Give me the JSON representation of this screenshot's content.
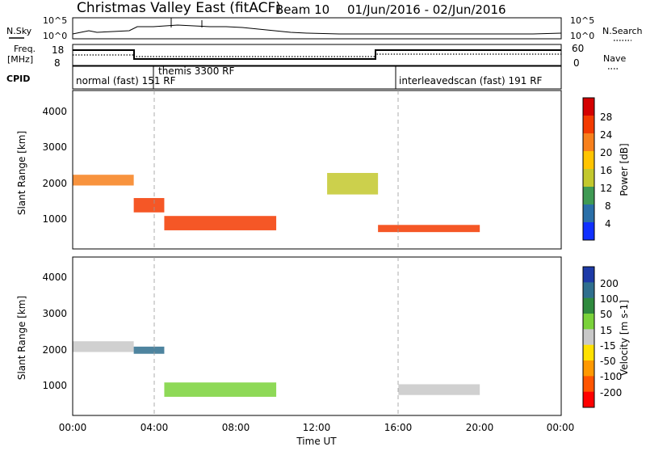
{
  "header": {
    "title": "Christmas Valley East (fitACF)",
    "beam": "Beam 10",
    "date_range": "01/Jun/2016 - 02/Jun/2016"
  },
  "nsky_panel": {
    "left_label": "N.Sky",
    "right_label": "N.Search",
    "tick_top": "10^5",
    "tick_bottom": "10^0"
  },
  "freq_panel": {
    "left_label_1": "Freq.",
    "left_label_2": "[MHz]",
    "left_tick_top": "18",
    "left_tick_bottom": "8",
    "right_label": "Nave",
    "right_tick_top": "60",
    "right_tick_bottom": "0"
  },
  "cpid_panel": {
    "label": "CPID",
    "segments": [
      {
        "text": "normal (fast) 151 RF"
      },
      {
        "text": "themis 3300 RF"
      },
      {
        "text": "interleavedscan (fast) 191 RF"
      }
    ]
  },
  "power_panel": {
    "ylabel": "Slant Range [km]",
    "colorbar_label": "Power [dB]",
    "colorbar_ticks": [
      "28",
      "24",
      "20",
      "16",
      "12",
      "8",
      "4"
    ],
    "colors": [
      "#d40000",
      "#f33a00",
      "#f7801c",
      "#ffc400",
      "#c3c82d",
      "#3f9a54",
      "#2a6fa8",
      "#1030ff"
    ]
  },
  "velocity_panel": {
    "ylabel": "Slant Range [km]",
    "colorbar_label": "Velocity [m s-1]",
    "colorbar_ticks": [
      "200",
      "100",
      "50",
      "15",
      "-15",
      "-50",
      "-100",
      "-200"
    ],
    "colors": [
      "#1d3aa7",
      "#2f6f8e",
      "#2f8a3e",
      "#7ad23a",
      "#c8c8c8",
      "#ffe100",
      "#ff9900",
      "#ff5500",
      "#ff0000"
    ]
  },
  "xaxis": {
    "label": "Time UT",
    "ticks": [
      "00:00",
      "04:00",
      "08:00",
      "12:00",
      "16:00",
      "20:00",
      "00:00"
    ]
  },
  "yaxis": {
    "ticks": [
      "1000",
      "2000",
      "3000",
      "4000"
    ]
  },
  "chart_data": [
    {
      "type": "heatmap",
      "title": "Christmas Valley East (fitACF) Beam 10 01/Jun/2016 - 02/Jun/2016",
      "ylabel": "Slant Range [km]",
      "xlabel": "Time UT",
      "xlim": [
        0,
        24
      ],
      "ylim": [
        180,
        4600
      ],
      "zlabel": "Power [dB]",
      "zlim": [
        0,
        32
      ],
      "features": [
        {
          "t_start": 0.0,
          "t_end": 3.0,
          "range_center": 2100,
          "range_width": 300,
          "power": 24
        },
        {
          "t_start": 3.0,
          "t_end": 4.5,
          "range_center": 1400,
          "range_width": 400,
          "power": 28
        },
        {
          "t_start": 4.5,
          "t_end": 10.0,
          "range_center": 900,
          "range_width": 400,
          "power": 28
        },
        {
          "t_start": 12.5,
          "t_end": 15.0,
          "range_center": 2000,
          "range_width": 600,
          "power": 14
        },
        {
          "t_start": 15.0,
          "t_end": 20.0,
          "range_center": 750,
          "range_width": 200,
          "power": 26
        }
      ]
    },
    {
      "type": "heatmap",
      "ylabel": "Slant Range [km]",
      "xlabel": "Time UT",
      "xlim": [
        0,
        24
      ],
      "ylim": [
        180,
        4600
      ],
      "zlabel": "Velocity [m s-1]",
      "zlim": [
        -250,
        250
      ],
      "features": [
        {
          "t_start": 0.0,
          "t_end": 3.0,
          "range_center": 2100,
          "range_width": 300,
          "velocity": 0
        },
        {
          "t_start": 3.0,
          "t_end": 4.5,
          "range_center": 2000,
          "range_width": 200,
          "velocity": 150
        },
        {
          "t_start": 4.5,
          "t_end": 10.0,
          "range_center": 900,
          "range_width": 400,
          "velocity": 40
        },
        {
          "t_start": 16.0,
          "t_end": 20.0,
          "range_center": 900,
          "range_width": 300,
          "velocity": 0
        }
      ]
    }
  ]
}
